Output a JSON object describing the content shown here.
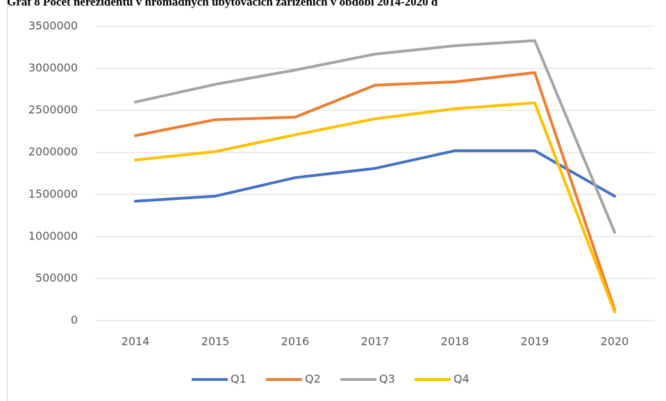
{
  "chart_data": {
    "type": "line",
    "title": "Graf 8 Počet nerezidentů v hromadných ubytovacích zařízeních v období 2014-2020 d",
    "categories": [
      "2014",
      "2015",
      "2016",
      "2017",
      "2018",
      "2019",
      "2020"
    ],
    "series": [
      {
        "name": "Q1",
        "color": "#4472c4",
        "values": [
          1420000,
          1480000,
          1700000,
          1810000,
          2020000,
          2020000,
          1480000
        ]
      },
      {
        "name": "Q2",
        "color": "#ed7d31",
        "values": [
          2200000,
          2390000,
          2420000,
          2800000,
          2840000,
          2950000,
          130000
        ]
      },
      {
        "name": "Q3",
        "color": "#a5a5a5",
        "values": [
          2600000,
          2810000,
          2980000,
          3170000,
          3270000,
          3330000,
          1050000
        ]
      },
      {
        "name": "Q4",
        "color": "#ffc000",
        "values": [
          1910000,
          2010000,
          2210000,
          2400000,
          2520000,
          2590000,
          100000
        ]
      }
    ],
    "ylim": [
      0,
      3500000
    ],
    "yticks": [
      0,
      500000,
      1000000,
      1500000,
      2000000,
      2500000,
      3000000,
      3500000
    ],
    "grid": true,
    "legend": "bottom"
  }
}
